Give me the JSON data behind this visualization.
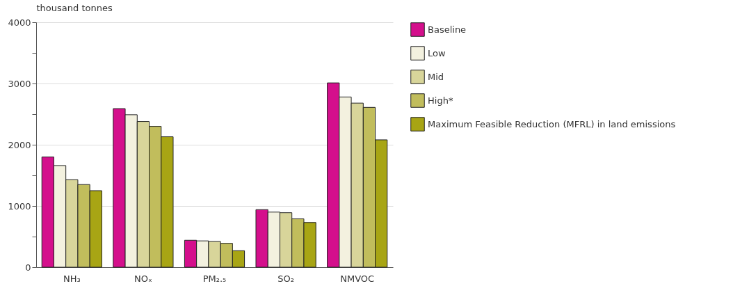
{
  "chart_data": {
    "type": "bar",
    "ylabel": "thousand tonnes",
    "categories": [
      "NH₃",
      "NOₓ",
      "PM₂.₅",
      "SO₂",
      "NMVOC"
    ],
    "series": [
      {
        "name": "Baseline",
        "color": "#d40f8c",
        "values": [
          1800,
          2590,
          440,
          940,
          3010
        ]
      },
      {
        "name": "Low",
        "color": "#f3f1df",
        "values": [
          1660,
          2490,
          430,
          900,
          2780
        ]
      },
      {
        "name": "Mid",
        "color": "#d8d59a",
        "values": [
          1430,
          2380,
          420,
          890,
          2680
        ]
      },
      {
        "name": "High*",
        "color": "#c1bd5c",
        "values": [
          1350,
          2300,
          390,
          790,
          2610
        ]
      },
      {
        "name": "Maximum Feasible Reduction (MFRL) in land emissions",
        "color": "#a8a514",
        "values": [
          1250,
          2130,
          270,
          730,
          2080
        ]
      }
    ],
    "ylim": [
      0,
      4000
    ],
    "yticks": [
      0,
      {
        "value": 500,
        "label": null
      },
      1000,
      {
        "value": 1500,
        "label": null
      },
      2000,
      {
        "value": 2500,
        "label": null
      },
      3000,
      {
        "value": 3500,
        "label": null
      },
      4000
    ],
    "grid": "y",
    "legend": "right"
  }
}
